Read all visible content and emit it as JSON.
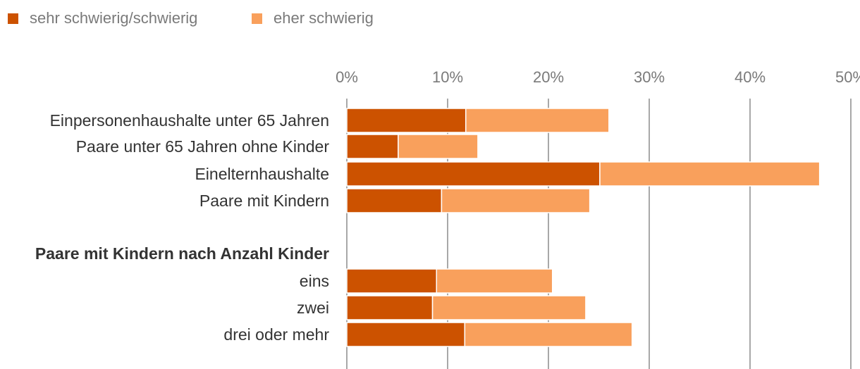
{
  "chart_data": {
    "type": "bar",
    "orientation": "horizontal",
    "stacked": true,
    "title": "",
    "xlabel": "",
    "ylabel": "",
    "xlim": [
      0,
      50
    ],
    "x_ticks": [
      "0%",
      "10%",
      "20%",
      "30%",
      "40%",
      "50%"
    ],
    "grid": true,
    "legend_position": "top-left",
    "categories": [
      "Einpersonenhaushalte unter 65 Jahren",
      "Paare unter 65 Jahren ohne Kinder",
      "Einelternhaushalte",
      "Paare mit Kindern",
      "Paare mit Kindern nach Anzahl Kinder",
      "eins",
      "zwei",
      "drei oder mehr"
    ],
    "category_is_heading": [
      false,
      false,
      false,
      false,
      true,
      false,
      false,
      false
    ],
    "series": [
      {
        "name": "sehr schwierig/schwierig",
        "color": "#cc5200",
        "values": [
          11.8,
          5.1,
          25.1,
          9.4,
          null,
          8.9,
          8.5,
          11.7
        ]
      },
      {
        "name": "eher schwierig",
        "color": "#f9a05c",
        "values": [
          14.2,
          7.9,
          21.8,
          14.7,
          null,
          11.5,
          15.2,
          16.6
        ]
      }
    ]
  }
}
